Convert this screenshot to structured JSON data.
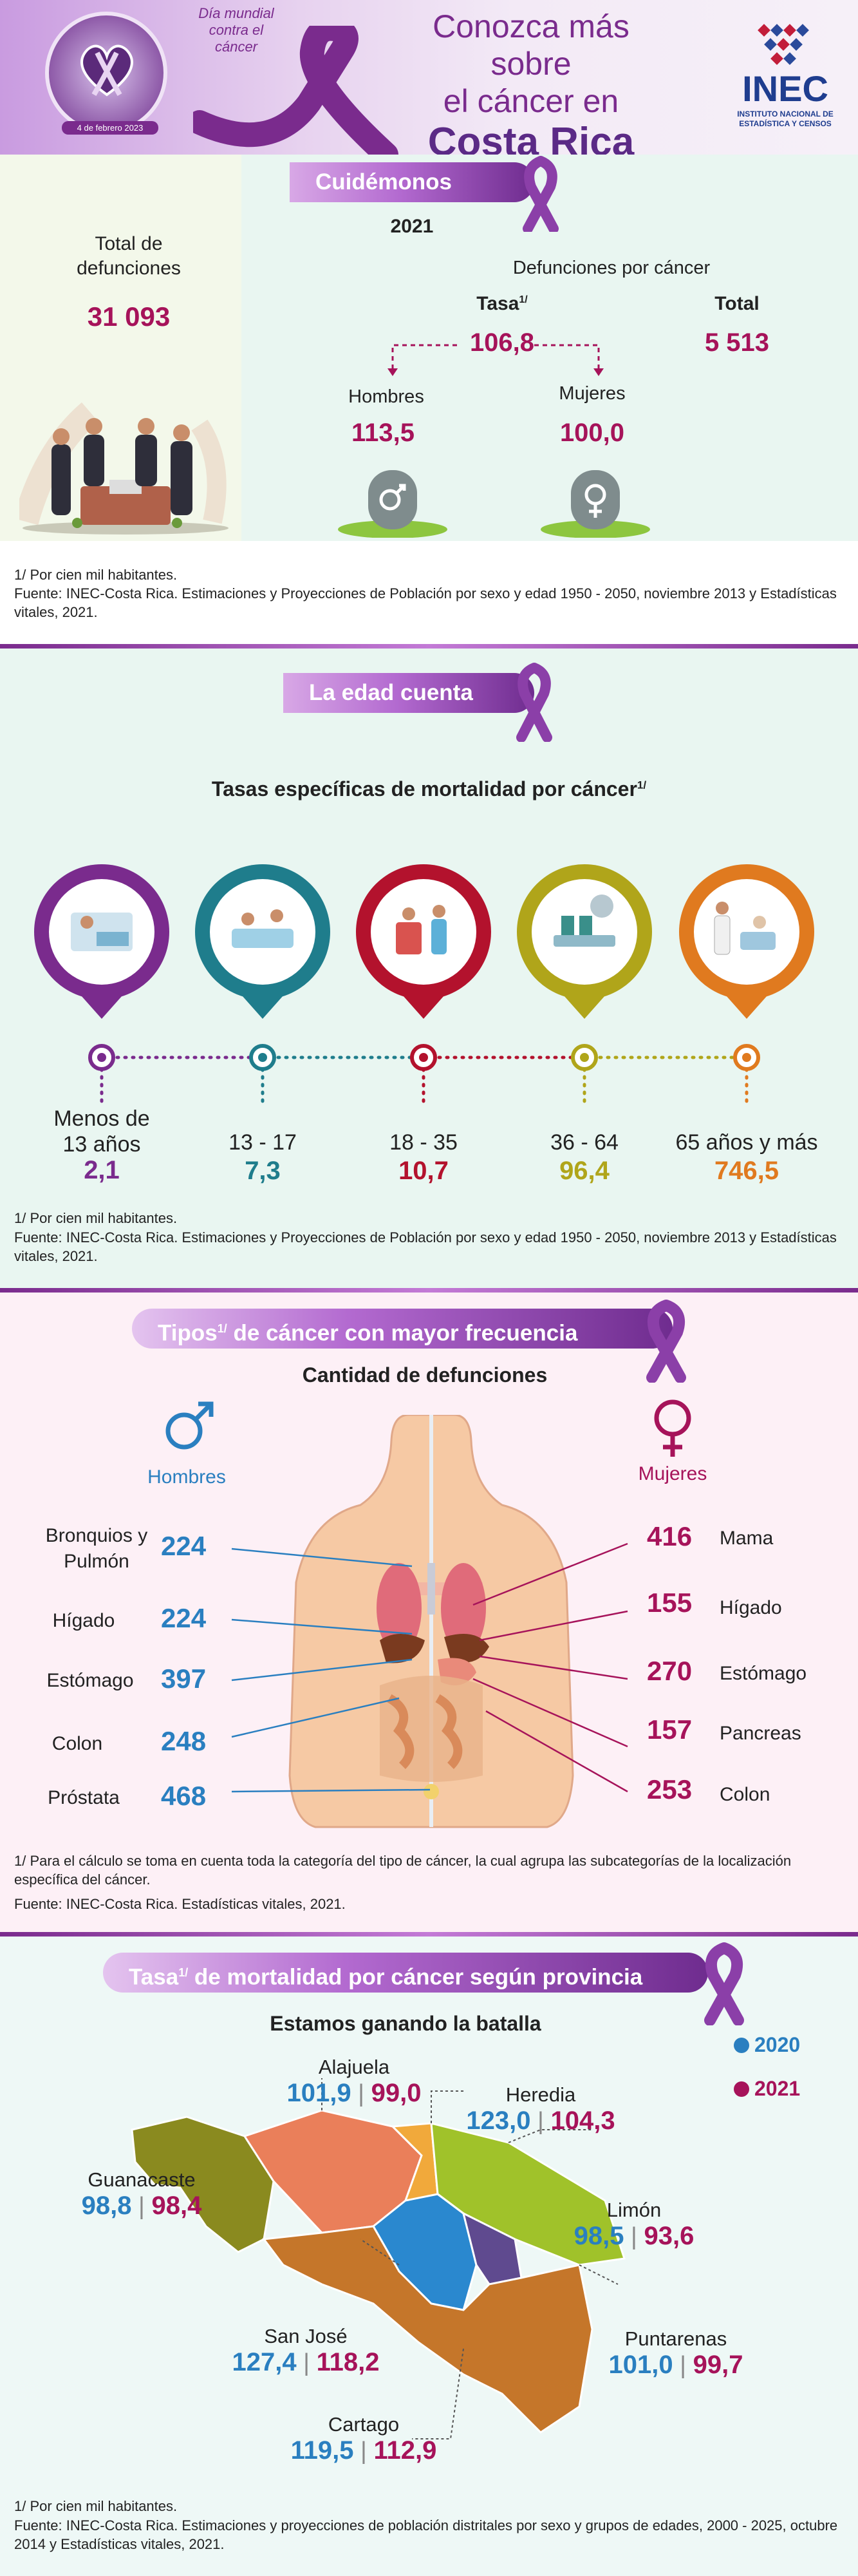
{
  "header": {
    "badge_line1": "Día mundial",
    "badge_line2": "contra el",
    "badge_line3": "cáncer",
    "badge_date": "4 de febrero 2023",
    "title_line1": "Conozca más sobre",
    "title_line2": "el cáncer en",
    "title_line3": "Costa Rica",
    "logo_text": "INEC",
    "logo_sub1": "INSTITUTO NACIONAL DE",
    "logo_sub2": "ESTADÍSTICA Y CENSOS"
  },
  "section1": {
    "pill": "Cuidémonos",
    "year": "2021",
    "total_label_l1": "Total de",
    "total_label_l2": "defunciones",
    "total_value": "31 093",
    "cancer_label": "Defunciones por cáncer",
    "tasa_label": "Tasa",
    "tasa_sup": "1/",
    "tasa_value": "106,8",
    "total_label": "Total",
    "cancer_total": "5 513",
    "men_label": "Hombres",
    "men_value": "113,5",
    "women_label": "Mujeres",
    "women_value": "100,0",
    "note1": "1/ Por cien mil habitantes.",
    "note2": "Fuente: INEC-Costa Rica. Estimaciones y Proyecciones de Población por sexo y edad 1950 - 2050, noviembre 2013 y Estadísticas vitales, 2021."
  },
  "section2": {
    "pill": "La edad cuenta",
    "subtitle": "Tasas específicas de mortalidad por cáncer",
    "subtitle_sup": "1/",
    "groups": [
      {
        "label_l1": "Menos de",
        "label_l2": "13 años",
        "value": "2,1",
        "color": "#7a2b8d"
      },
      {
        "label_l1": "",
        "label_l2": "13 - 17",
        "value": "7,3",
        "color": "#1f7d8c"
      },
      {
        "label_l1": "",
        "label_l2": "18 - 35",
        "value": "10,7",
        "color": "#b3122d"
      },
      {
        "label_l1": "",
        "label_l2": "36 - 64",
        "value": "96,4",
        "color": "#b0a51a"
      },
      {
        "label_l1": "",
        "label_l2": "65 años y más",
        "value": "746,5",
        "color": "#e07a1f"
      }
    ],
    "note1": "1/ Por cien mil habitantes.",
    "note2": "Fuente: INEC-Costa Rica. Estimaciones y Proyecciones de Población por sexo y edad 1950 - 2050, noviembre 2013  y Estadísticas vitales, 2021."
  },
  "section3": {
    "pill": "Tipos",
    "pill_sup": "1/",
    "pill_rest": " de cáncer con mayor frecuencia",
    "subtitle": "Cantidad de defunciones",
    "men_label": "Hombres",
    "women_label": "Mujeres",
    "men": [
      {
        "label": "Bronquios y Pulmón",
        "value": "224"
      },
      {
        "label": "Hígado",
        "value": "224"
      },
      {
        "label": "Estómago",
        "value": "397"
      },
      {
        "label": "Colon",
        "value": "248"
      },
      {
        "label": "Próstata",
        "value": "468"
      }
    ],
    "women": [
      {
        "label": "Mama",
        "value": "416"
      },
      {
        "label": "Hígado",
        "value": "155"
      },
      {
        "label": "Estómago",
        "value": "270"
      },
      {
        "label": "Pancreas",
        "value": "157"
      },
      {
        "label": "Colon",
        "value": "253"
      }
    ],
    "note1": "1/ Para el cálculo se toma en cuenta toda la categoría del tipo de cáncer, la cual agrupa las subcategorías de la localización específica del cáncer.",
    "note2": "Fuente: INEC-Costa Rica. Estadísticas vitales, 2021."
  },
  "section4": {
    "pill": "Tasa",
    "pill_sup": "1/",
    "pill_rest": " de mortalidad por cáncer según provincia",
    "subtitle": "Estamos ganando la batalla",
    "legend_2020": "2020",
    "legend_2021": "2021",
    "color_2020": "#2a7fc0",
    "color_2021": "#a6135a",
    "provinces": [
      {
        "name": "Alajuela",
        "v2020": "101,9",
        "v2021": "99,0"
      },
      {
        "name": "Heredia",
        "v2020": "123,0",
        "v2021": "104,3"
      },
      {
        "name": "Guanacaste",
        "v2020": "98,8",
        "v2021": "98,4"
      },
      {
        "name": "Limón",
        "v2020": "98,5",
        "v2021": "93,6"
      },
      {
        "name": "San José",
        "v2020": "127,4",
        "v2021": "118,2"
      },
      {
        "name": "Puntarenas",
        "v2020": "101,0",
        "v2021": "99,7"
      },
      {
        "name": "Cartago",
        "v2020": "119,5",
        "v2021": "112,9"
      }
    ],
    "note1": "1/ Por cien mil habitantes.",
    "note2": "Fuente: INEC-Costa Rica. Estimaciones y proyecciones de población distritales por sexo y grupos de edades, 2000 - 2025, octubre 2014 y Estadísticas vitales, 2021."
  }
}
